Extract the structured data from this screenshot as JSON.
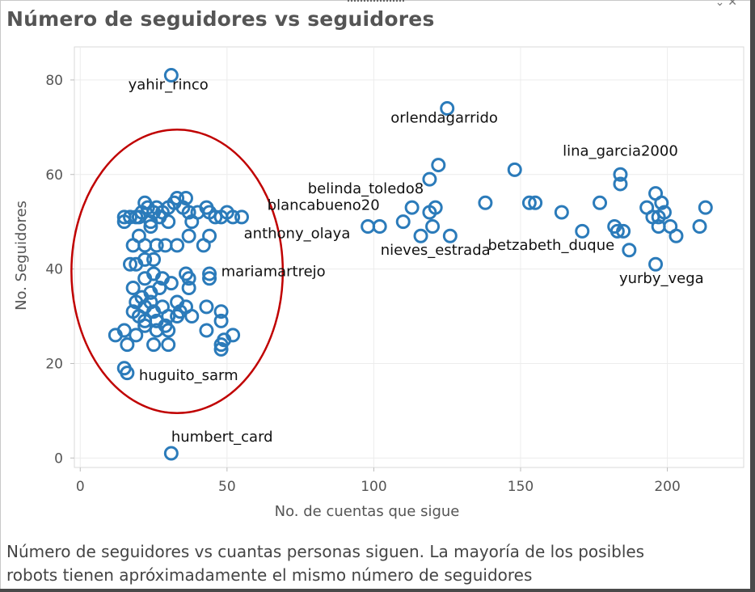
{
  "page": {
    "title": "Número de seguidores vs seguidores",
    "caption_line1": "Número de seguidores vs cuantas personas siguen. La mayoría de los posibles",
    "caption_line2": "robots tienen apróximadamente el mismo número de seguidores",
    "controls_icon": "chevron-close-icon"
  },
  "chart_data": {
    "type": "scatter",
    "title": "Número de seguidores vs seguidores",
    "xlabel": "No. de cuentas que sigue",
    "ylabel": "No. Seguidores",
    "xlim": [
      -2,
      226
    ],
    "ylim": [
      -2,
      87
    ],
    "xticks": [
      0,
      50,
      100,
      150,
      200
    ],
    "yticks": [
      0,
      20,
      40,
      60,
      80
    ],
    "grid": true,
    "marker": "hollow-circle",
    "color": "#2b7bba",
    "highlight_color": "#c00000",
    "highlight_region": {
      "shape": "ellipse",
      "cx": 33,
      "cy": 39.5,
      "rx": 36,
      "ry": 30
    },
    "points": [
      {
        "x": 31,
        "y": 81
      },
      {
        "x": 125,
        "y": 74
      },
      {
        "x": 122,
        "y": 62
      },
      {
        "x": 119,
        "y": 59
      },
      {
        "x": 148,
        "y": 61
      },
      {
        "x": 184,
        "y": 60
      },
      {
        "x": 184,
        "y": 58
      },
      {
        "x": 138,
        "y": 54
      },
      {
        "x": 153,
        "y": 54
      },
      {
        "x": 155,
        "y": 54
      },
      {
        "x": 164,
        "y": 52
      },
      {
        "x": 177,
        "y": 54
      },
      {
        "x": 196,
        "y": 56
      },
      {
        "x": 198,
        "y": 54
      },
      {
        "x": 193,
        "y": 53
      },
      {
        "x": 199,
        "y": 52
      },
      {
        "x": 213,
        "y": 53
      },
      {
        "x": 195,
        "y": 51
      },
      {
        "x": 197,
        "y": 51
      },
      {
        "x": 197,
        "y": 49
      },
      {
        "x": 201,
        "y": 49
      },
      {
        "x": 203,
        "y": 47
      },
      {
        "x": 211,
        "y": 49
      },
      {
        "x": 182,
        "y": 49
      },
      {
        "x": 183,
        "y": 48
      },
      {
        "x": 185,
        "y": 48
      },
      {
        "x": 171,
        "y": 48
      },
      {
        "x": 187,
        "y": 44
      },
      {
        "x": 196,
        "y": 41
      },
      {
        "x": 113,
        "y": 53
      },
      {
        "x": 121,
        "y": 53
      },
      {
        "x": 119,
        "y": 52
      },
      {
        "x": 110,
        "y": 50
      },
      {
        "x": 120,
        "y": 49
      },
      {
        "x": 116,
        "y": 47
      },
      {
        "x": 126,
        "y": 47
      },
      {
        "x": 98,
        "y": 49
      },
      {
        "x": 102,
        "y": 49
      },
      {
        "x": 31,
        "y": 1
      },
      {
        "x": 15,
        "y": 19
      },
      {
        "x": 16,
        "y": 18
      },
      {
        "x": 12,
        "y": 26
      },
      {
        "x": 15,
        "y": 27
      },
      {
        "x": 16,
        "y": 24
      },
      {
        "x": 19,
        "y": 26
      },
      {
        "x": 25,
        "y": 24
      },
      {
        "x": 30,
        "y": 24
      },
      {
        "x": 48,
        "y": 23
      },
      {
        "x": 48,
        "y": 24
      },
      {
        "x": 49,
        "y": 25
      },
      {
        "x": 52,
        "y": 26
      },
      {
        "x": 43,
        "y": 27
      },
      {
        "x": 30,
        "y": 27
      },
      {
        "x": 22,
        "y": 29
      },
      {
        "x": 26,
        "y": 29
      },
      {
        "x": 30,
        "y": 30
      },
      {
        "x": 34,
        "y": 31
      },
      {
        "x": 38,
        "y": 30
      },
      {
        "x": 48,
        "y": 29
      },
      {
        "x": 48,
        "y": 31
      },
      {
        "x": 43,
        "y": 32
      },
      {
        "x": 36,
        "y": 32
      },
      {
        "x": 33,
        "y": 33
      },
      {
        "x": 28,
        "y": 32
      },
      {
        "x": 25,
        "y": 31
      },
      {
        "x": 22,
        "y": 32
      },
      {
        "x": 18,
        "y": 31
      },
      {
        "x": 19,
        "y": 33
      },
      {
        "x": 21,
        "y": 34
      },
      {
        "x": 24,
        "y": 35
      },
      {
        "x": 27,
        "y": 36
      },
      {
        "x": 31,
        "y": 37
      },
      {
        "x": 37,
        "y": 36
      },
      {
        "x": 18,
        "y": 36
      },
      {
        "x": 22,
        "y": 38
      },
      {
        "x": 25,
        "y": 39
      },
      {
        "x": 28,
        "y": 38
      },
      {
        "x": 36,
        "y": 39
      },
      {
        "x": 37,
        "y": 38
      },
      {
        "x": 44,
        "y": 38
      },
      {
        "x": 44,
        "y": 39
      },
      {
        "x": 17,
        "y": 41
      },
      {
        "x": 19,
        "y": 41
      },
      {
        "x": 22,
        "y": 42
      },
      {
        "x": 25,
        "y": 42
      },
      {
        "x": 18,
        "y": 45
      },
      {
        "x": 22,
        "y": 45
      },
      {
        "x": 26,
        "y": 45
      },
      {
        "x": 29,
        "y": 45
      },
      {
        "x": 33,
        "y": 45
      },
      {
        "x": 20,
        "y": 47
      },
      {
        "x": 24,
        "y": 49
      },
      {
        "x": 37,
        "y": 47
      },
      {
        "x": 44,
        "y": 47
      },
      {
        "x": 42,
        "y": 45
      },
      {
        "x": 15,
        "y": 51
      },
      {
        "x": 15,
        "y": 50
      },
      {
        "x": 17,
        "y": 51
      },
      {
        "x": 19,
        "y": 51
      },
      {
        "x": 21,
        "y": 52
      },
      {
        "x": 22,
        "y": 54
      },
      {
        "x": 23,
        "y": 53
      },
      {
        "x": 25,
        "y": 52
      },
      {
        "x": 26,
        "y": 53
      },
      {
        "x": 28,
        "y": 52
      },
      {
        "x": 30,
        "y": 53
      },
      {
        "x": 32,
        "y": 54
      },
      {
        "x": 33,
        "y": 55
      },
      {
        "x": 36,
        "y": 55
      },
      {
        "x": 35,
        "y": 53
      },
      {
        "x": 37,
        "y": 52
      },
      {
        "x": 40,
        "y": 52
      },
      {
        "x": 43,
        "y": 53
      },
      {
        "x": 44,
        "y": 52
      },
      {
        "x": 46,
        "y": 51
      },
      {
        "x": 48,
        "y": 51
      },
      {
        "x": 50,
        "y": 52
      },
      {
        "x": 52,
        "y": 51
      },
      {
        "x": 55,
        "y": 51
      },
      {
        "x": 20,
        "y": 51
      },
      {
        "x": 24,
        "y": 50
      },
      {
        "x": 27,
        "y": 51
      },
      {
        "x": 30,
        "y": 50
      },
      {
        "x": 38,
        "y": 50
      },
      {
        "x": 22,
        "y": 28
      },
      {
        "x": 26,
        "y": 27
      },
      {
        "x": 20,
        "y": 30
      },
      {
        "x": 29,
        "y": 28
      },
      {
        "x": 33,
        "y": 30
      },
      {
        "x": 24,
        "y": 33
      }
    ],
    "annotations": [
      {
        "text": "yahir_rinco",
        "x": 30,
        "y": 78,
        "anchor": "middle"
      },
      {
        "text": "orlendagarrido",
        "x": 124,
        "y": 71,
        "anchor": "middle"
      },
      {
        "text": "lina_garcia2000",
        "x": 184,
        "y": 64,
        "anchor": "middle"
      },
      {
        "text": "belinda_toledo8",
        "x": 117,
        "y": 56,
        "anchor": "end"
      },
      {
        "text": "blancabueno20",
        "x": 102,
        "y": 52.5,
        "anchor": "end"
      },
      {
        "text": "anthony_olaya",
        "x": 92,
        "y": 46.5,
        "anchor": "end"
      },
      {
        "text": "nieves_estrada",
        "x": 121,
        "y": 43,
        "anchor": "middle"
      },
      {
        "text": "betzabeth_duque",
        "x": 182,
        "y": 44,
        "anchor": "end"
      },
      {
        "text": "yurby_vega",
        "x": 198,
        "y": 37,
        "anchor": "middle"
      },
      {
        "text": "mariamartrejo",
        "x": 48,
        "y": 38.5,
        "anchor": "start"
      },
      {
        "text": "huguito_sarm",
        "x": 20,
        "y": 16.5,
        "anchor": "start"
      },
      {
        "text": "humbert_card",
        "x": 31,
        "y": 3.5,
        "anchor": "start"
      }
    ]
  }
}
